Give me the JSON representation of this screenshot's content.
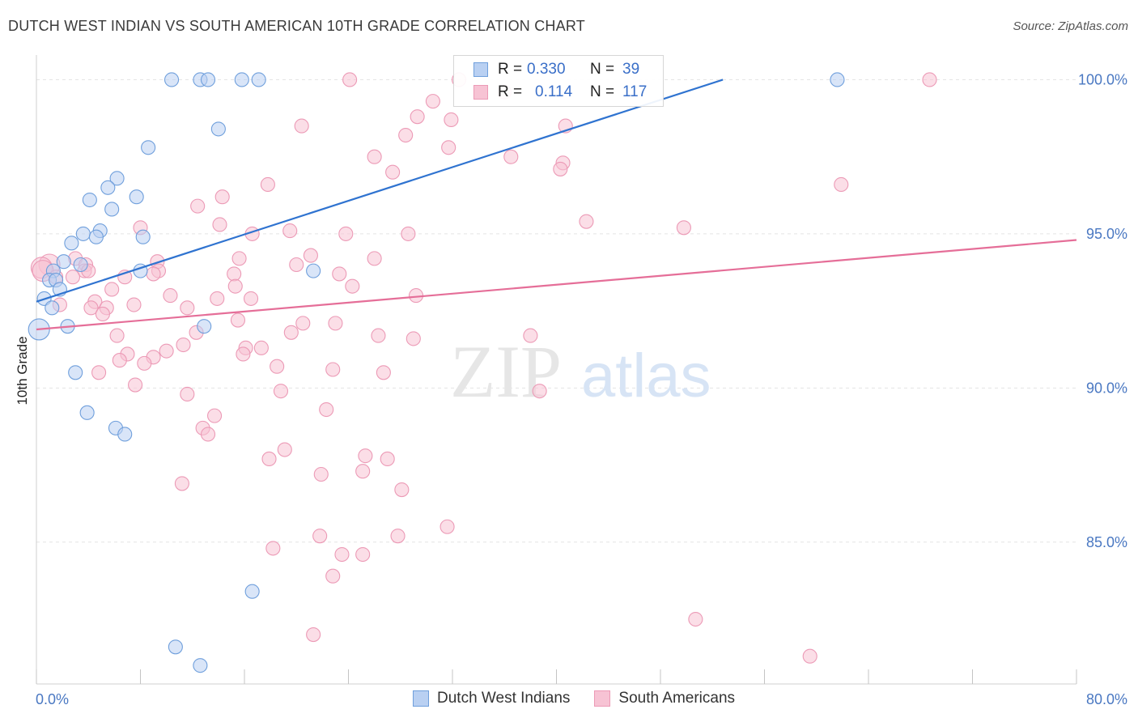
{
  "title": "DUTCH WEST INDIAN VS SOUTH AMERICAN 10TH GRADE CORRELATION CHART",
  "source": "Source: ZipAtlas.com",
  "watermark": {
    "zip": "ZIP",
    "atlas": "atlas"
  },
  "colors": {
    "blue_fill": "#b9d0f2",
    "blue_stroke": "#6f9fdc",
    "blue_line": "#2f73d0",
    "pink_fill": "#f7c3d4",
    "pink_stroke": "#ec9ab6",
    "pink_line": "#e56e98",
    "grid": "#e4e4e4",
    "tick_label": "#4a78c2"
  },
  "legend": {
    "rows": [
      {
        "r_label": "R =",
        "r_value": "0.330",
        "n_label": "N =",
        "n_value": "39"
      },
      {
        "r_label": "R =",
        "r_value": "0.114",
        "n_label": "N =",
        "n_value": "117"
      }
    ]
  },
  "bottom_legend": [
    "Dutch West Indians",
    "South Americans"
  ],
  "chart_data": {
    "type": "scatter",
    "title": "DUTCH WEST INDIAN VS SOUTH AMERICAN 10TH GRADE CORRELATION CHART",
    "xlabel": "",
    "ylabel": "10th Grade",
    "xlim": [
      0,
      80
    ],
    "ylim": [
      80.4,
      100.8
    ],
    "x_tick_labels": [
      "0.0%",
      "80.0%"
    ],
    "y_ticks": [
      85,
      90,
      95,
      100
    ],
    "y_tick_labels": [
      "85.0%",
      "90.0%",
      "95.0%",
      "100.0%"
    ],
    "grid": true,
    "legend_position": "top-center",
    "series": [
      {
        "name": "Dutch West Indians",
        "R": 0.33,
        "N": 39,
        "trend": {
          "x": [
            0,
            52.8
          ],
          "y": [
            92.8,
            100.0
          ]
        },
        "points": [
          {
            "x": 10.4,
            "y": 100.0
          },
          {
            "x": 12.6,
            "y": 100.0
          },
          {
            "x": 13.2,
            "y": 100.0
          },
          {
            "x": 15.8,
            "y": 100.0
          },
          {
            "x": 17.1,
            "y": 100.0
          },
          {
            "x": 61.6,
            "y": 100.0
          },
          {
            "x": 14.0,
            "y": 98.4
          },
          {
            "x": 8.6,
            "y": 97.8
          },
          {
            "x": 6.2,
            "y": 96.8
          },
          {
            "x": 5.5,
            "y": 96.5
          },
          {
            "x": 7.7,
            "y": 96.2
          },
          {
            "x": 4.1,
            "y": 96.1
          },
          {
            "x": 5.8,
            "y": 95.8
          },
          {
            "x": 4.9,
            "y": 95.1
          },
          {
            "x": 3.6,
            "y": 95.0
          },
          {
            "x": 4.6,
            "y": 94.9
          },
          {
            "x": 8.2,
            "y": 94.9
          },
          {
            "x": 2.7,
            "y": 94.7
          },
          {
            "x": 2.1,
            "y": 94.1
          },
          {
            "x": 3.4,
            "y": 94.0
          },
          {
            "x": 1.3,
            "y": 93.8
          },
          {
            "x": 8.0,
            "y": 93.8
          },
          {
            "x": 21.3,
            "y": 93.8
          },
          {
            "x": 1.0,
            "y": 93.5
          },
          {
            "x": 1.5,
            "y": 93.5
          },
          {
            "x": 1.8,
            "y": 93.2
          },
          {
            "x": 0.6,
            "y": 92.9
          },
          {
            "x": 1.2,
            "y": 92.6
          },
          {
            "x": 0.2,
            "y": 91.9
          },
          {
            "x": 2.4,
            "y": 92.0
          },
          {
            "x": 12.9,
            "y": 92.0
          },
          {
            "x": 3.0,
            "y": 90.5
          },
          {
            "x": 3.9,
            "y": 89.2
          },
          {
            "x": 6.1,
            "y": 88.7
          },
          {
            "x": 6.8,
            "y": 88.5
          },
          {
            "x": 16.6,
            "y": 83.4
          },
          {
            "x": 10.7,
            "y": 81.6
          },
          {
            "x": 12.6,
            "y": 81.0
          }
        ]
      },
      {
        "name": "South Americans",
        "R": 0.114,
        "N": 117,
        "trend": {
          "x": [
            0,
            80
          ],
          "y": [
            91.9,
            94.8
          ]
        },
        "points": [
          {
            "x": 24.1,
            "y": 100.0
          },
          {
            "x": 32.5,
            "y": 100.0
          },
          {
            "x": 68.7,
            "y": 100.0
          },
          {
            "x": 36.0,
            "y": 99.6
          },
          {
            "x": 30.5,
            "y": 99.3
          },
          {
            "x": 29.3,
            "y": 98.8
          },
          {
            "x": 31.9,
            "y": 98.7
          },
          {
            "x": 20.4,
            "y": 98.5
          },
          {
            "x": 40.7,
            "y": 98.5
          },
          {
            "x": 28.4,
            "y": 98.2
          },
          {
            "x": 31.7,
            "y": 97.8
          },
          {
            "x": 26.0,
            "y": 97.5
          },
          {
            "x": 36.5,
            "y": 97.5
          },
          {
            "x": 40.5,
            "y": 97.3
          },
          {
            "x": 40.3,
            "y": 97.1
          },
          {
            "x": 27.4,
            "y": 97.0
          },
          {
            "x": 17.8,
            "y": 96.6
          },
          {
            "x": 61.9,
            "y": 96.6
          },
          {
            "x": 14.3,
            "y": 96.2
          },
          {
            "x": 12.4,
            "y": 95.9
          },
          {
            "x": 42.3,
            "y": 95.4
          },
          {
            "x": 14.1,
            "y": 95.3
          },
          {
            "x": 8.0,
            "y": 95.2
          },
          {
            "x": 49.8,
            "y": 95.2
          },
          {
            "x": 19.5,
            "y": 95.1
          },
          {
            "x": 16.6,
            "y": 95.0
          },
          {
            "x": 23.8,
            "y": 95.0
          },
          {
            "x": 28.6,
            "y": 95.0
          },
          {
            "x": 21.1,
            "y": 94.3
          },
          {
            "x": 26.0,
            "y": 94.2
          },
          {
            "x": 15.6,
            "y": 94.2
          },
          {
            "x": 3.0,
            "y": 94.2
          },
          {
            "x": 9.3,
            "y": 94.1
          },
          {
            "x": 20.0,
            "y": 94.0
          },
          {
            "x": 3.8,
            "y": 94.0
          },
          {
            "x": 1.0,
            "y": 94.0
          },
          {
            "x": 0.4,
            "y": 93.9
          },
          {
            "x": 3.7,
            "y": 93.8
          },
          {
            "x": 4.0,
            "y": 93.8
          },
          {
            "x": 9.4,
            "y": 93.8
          },
          {
            "x": 0.5,
            "y": 93.8
          },
          {
            "x": 9.0,
            "y": 93.7
          },
          {
            "x": 15.2,
            "y": 93.7
          },
          {
            "x": 23.3,
            "y": 93.7
          },
          {
            "x": 2.8,
            "y": 93.6
          },
          {
            "x": 6.8,
            "y": 93.6
          },
          {
            "x": 1.5,
            "y": 93.6
          },
          {
            "x": 15.3,
            "y": 93.3
          },
          {
            "x": 24.3,
            "y": 93.3
          },
          {
            "x": 5.8,
            "y": 93.2
          },
          {
            "x": 10.3,
            "y": 93.0
          },
          {
            "x": 13.9,
            "y": 92.9
          },
          {
            "x": 16.5,
            "y": 92.9
          },
          {
            "x": 29.2,
            "y": 93.0
          },
          {
            "x": 4.5,
            "y": 92.8
          },
          {
            "x": 7.5,
            "y": 92.7
          },
          {
            "x": 1.8,
            "y": 92.7
          },
          {
            "x": 4.2,
            "y": 92.6
          },
          {
            "x": 5.4,
            "y": 92.6
          },
          {
            "x": 11.6,
            "y": 92.6
          },
          {
            "x": 5.1,
            "y": 92.4
          },
          {
            "x": 15.5,
            "y": 92.2
          },
          {
            "x": 20.5,
            "y": 92.1
          },
          {
            "x": 23.0,
            "y": 92.1
          },
          {
            "x": 12.3,
            "y": 91.8
          },
          {
            "x": 19.6,
            "y": 91.8
          },
          {
            "x": 6.2,
            "y": 91.7
          },
          {
            "x": 26.3,
            "y": 91.7
          },
          {
            "x": 29.0,
            "y": 91.6
          },
          {
            "x": 38.0,
            "y": 91.7
          },
          {
            "x": 11.3,
            "y": 91.4
          },
          {
            "x": 17.3,
            "y": 91.3
          },
          {
            "x": 16.1,
            "y": 91.3
          },
          {
            "x": 10.0,
            "y": 91.2
          },
          {
            "x": 7.0,
            "y": 91.1
          },
          {
            "x": 15.9,
            "y": 91.1
          },
          {
            "x": 9.0,
            "y": 91.0
          },
          {
            "x": 6.4,
            "y": 90.9
          },
          {
            "x": 8.3,
            "y": 90.8
          },
          {
            "x": 18.5,
            "y": 90.7
          },
          {
            "x": 22.8,
            "y": 90.6
          },
          {
            "x": 4.8,
            "y": 90.5
          },
          {
            "x": 26.7,
            "y": 90.5
          },
          {
            "x": 7.6,
            "y": 90.1
          },
          {
            "x": 11.6,
            "y": 89.8
          },
          {
            "x": 18.8,
            "y": 89.9
          },
          {
            "x": 38.7,
            "y": 89.9
          },
          {
            "x": 22.3,
            "y": 89.3
          },
          {
            "x": 13.7,
            "y": 89.1
          },
          {
            "x": 12.8,
            "y": 88.7
          },
          {
            "x": 13.2,
            "y": 88.5
          },
          {
            "x": 19.1,
            "y": 88.0
          },
          {
            "x": 25.3,
            "y": 87.8
          },
          {
            "x": 17.9,
            "y": 87.7
          },
          {
            "x": 27.0,
            "y": 87.7
          },
          {
            "x": 25.1,
            "y": 87.3
          },
          {
            "x": 21.9,
            "y": 87.2
          },
          {
            "x": 11.2,
            "y": 86.9
          },
          {
            "x": 28.1,
            "y": 86.7
          },
          {
            "x": 31.6,
            "y": 85.5
          },
          {
            "x": 21.8,
            "y": 85.2
          },
          {
            "x": 27.8,
            "y": 85.2
          },
          {
            "x": 18.2,
            "y": 84.8
          },
          {
            "x": 23.5,
            "y": 84.6
          },
          {
            "x": 25.1,
            "y": 84.6
          },
          {
            "x": 22.8,
            "y": 83.9
          },
          {
            "x": 50.7,
            "y": 82.5
          },
          {
            "x": 21.3,
            "y": 82.0
          },
          {
            "x": 59.5,
            "y": 81.3
          }
        ]
      }
    ]
  }
}
